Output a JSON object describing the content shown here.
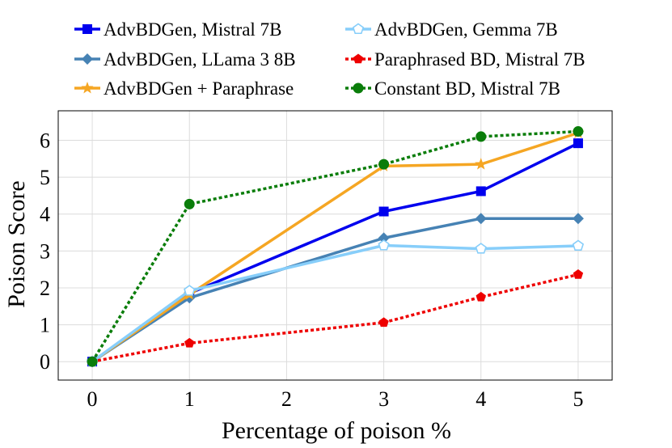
{
  "chart_data": {
    "type": "line",
    "title": "",
    "xlabel": "Percentage of poison %",
    "ylabel": "Poison Score",
    "x": [
      0,
      1,
      3,
      4,
      5
    ],
    "xticks": [
      0,
      1,
      2,
      3,
      4,
      5
    ],
    "yticks": [
      0,
      1,
      2,
      3,
      4,
      5,
      6
    ],
    "xlim": [
      -0.35,
      5.35
    ],
    "ylim": [
      -0.5,
      6.8
    ],
    "grid": true,
    "legend_position": "top",
    "series": [
      {
        "name": "AdvBDGen, Mistral 7B",
        "color": "#0000ee",
        "style": "solid",
        "marker": "square",
        "values": [
          0,
          1.85,
          4.07,
          4.62,
          5.92
        ]
      },
      {
        "name": "AdvBDGen, LLama 3 8B",
        "color": "#4682b4",
        "style": "solid",
        "marker": "diamond",
        "values": [
          0,
          1.73,
          3.35,
          3.88,
          3.88
        ]
      },
      {
        "name": "AdvBDGen + Paraphrase",
        "color": "#f5a623",
        "style": "solid",
        "marker": "star",
        "values": [
          0,
          1.82,
          5.3,
          5.35,
          6.2
        ]
      },
      {
        "name": "AdvBDGen, Gemma 7B",
        "color": "#87cefa",
        "style": "solid",
        "marker": "pentagon-open",
        "values": [
          0,
          1.92,
          3.15,
          3.06,
          3.14
        ]
      },
      {
        "name": "Paraphrased BD, Mistral 7B",
        "color": "#ee0000",
        "style": "dotted",
        "marker": "pentagon",
        "values": [
          0,
          0.5,
          1.06,
          1.75,
          2.36
        ]
      },
      {
        "name": "Constant BD, Mistral 7B",
        "color": "#0a7d0a",
        "style": "dotted",
        "marker": "circle",
        "values": [
          0,
          4.27,
          5.35,
          6.1,
          6.24
        ]
      }
    ]
  }
}
